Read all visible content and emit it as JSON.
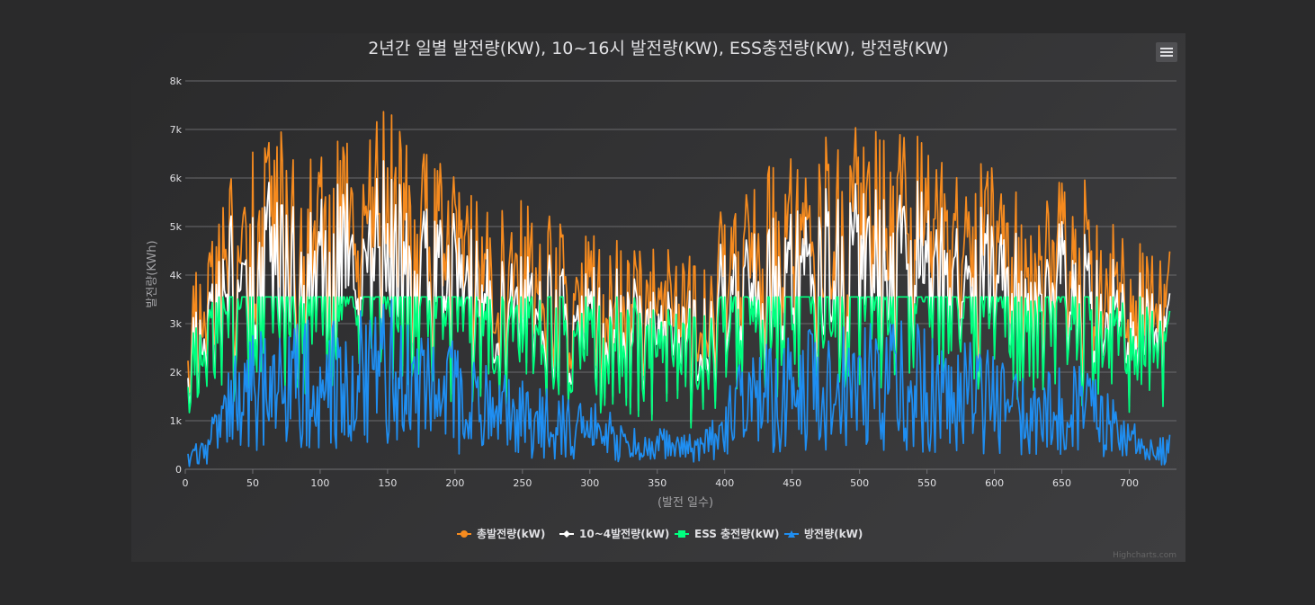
{
  "chart_data": {
    "type": "line",
    "title": "2년간 일별 발전량(KW), 10~16시 발전량(KW), ESS충전량(KW), 방전량(KW)",
    "xlabel": "(발전 일수)",
    "ylabel": "발전량(KWh)",
    "xlim": [
      0,
      735
    ],
    "ylim": [
      0,
      8000
    ],
    "x_ticks": [
      "0",
      "50",
      "100",
      "150",
      "200",
      "250",
      "300",
      "350",
      "400",
      "450",
      "500",
      "550",
      "600",
      "650",
      "700"
    ],
    "y_ticks": [
      "0",
      "1k",
      "2k",
      "3k",
      "4k",
      "5k",
      "6k",
      "7k",
      "8k"
    ],
    "x_tick_values": [
      0,
      50,
      100,
      150,
      200,
      250,
      300,
      350,
      400,
      450,
      500,
      550,
      600,
      650,
      700
    ],
    "y_tick_values": [
      0,
      1000,
      2000,
      3000,
      4000,
      5000,
      6000,
      7000,
      8000
    ],
    "grid": true,
    "legend_position": "bottom-center",
    "ess_cap": 3550,
    "series": [
      {
        "name": "총발전량(kW)",
        "color": "#f68b1f",
        "marker": "circle",
        "x": [
          2,
          10,
          20,
          30,
          40,
          50,
          60,
          70,
          80,
          90,
          100,
          110,
          120,
          130,
          140,
          150,
          160,
          170,
          180,
          190,
          200,
          210,
          220,
          230,
          240,
          250,
          260,
          270,
          280,
          290,
          300,
          310,
          320,
          330,
          340,
          350,
          360,
          370,
          380,
          390,
          400,
          410,
          420,
          430,
          440,
          450,
          460,
          470,
          480,
          490,
          500,
          510,
          520,
          530,
          540,
          550,
          560,
          570,
          580,
          590,
          600,
          610,
          620,
          630,
          640,
          650,
          660,
          670,
          680,
          690,
          700,
          710,
          720,
          730
        ],
        "values": [
          3300,
          3900,
          4300,
          4900,
          5400,
          5700,
          5800,
          5850,
          5500,
          5650,
          5650,
          5700,
          5650,
          5750,
          6050,
          6200,
          6150,
          5800,
          5500,
          5350,
          5300,
          5100,
          4850,
          4700,
          4500,
          4700,
          4600,
          4500,
          4300,
          4100,
          4250,
          4050,
          3950,
          3750,
          3750,
          3850,
          3850,
          3750,
          3650,
          3950,
          4750,
          4900,
          5150,
          5250,
          5450,
          5500,
          5550,
          5600,
          5650,
          5750,
          5850,
          5900,
          5950,
          5850,
          5750,
          5600,
          5500,
          5550,
          5400,
          5350,
          5200,
          4950,
          4700,
          4750,
          4800,
          4900,
          5000,
          4850,
          4550,
          4150,
          4000,
          3800,
          3800,
          3900
        ]
      },
      {
        "name": "10~4발전량(kW)",
        "color": "#ffffff",
        "marker": "diamond",
        "x": [
          2,
          10,
          20,
          30,
          40,
          50,
          60,
          70,
          80,
          90,
          100,
          110,
          120,
          130,
          140,
          150,
          160,
          170,
          180,
          190,
          200,
          210,
          220,
          230,
          240,
          250,
          260,
          270,
          280,
          290,
          300,
          310,
          320,
          330,
          340,
          350,
          360,
          370,
          380,
          390,
          400,
          410,
          420,
          430,
          440,
          450,
          460,
          470,
          480,
          490,
          500,
          510,
          520,
          530,
          540,
          550,
          560,
          570,
          580,
          590,
          600,
          610,
          620,
          630,
          640,
          650,
          660,
          670,
          680,
          690,
          700,
          710,
          720,
          730
        ],
        "values": [
          3000,
          3600,
          3900,
          4300,
          4700,
          4900,
          4950,
          4950,
          4800,
          4800,
          4800,
          4800,
          4750,
          4850,
          4950,
          5000,
          4950,
          4800,
          4700,
          4600,
          4500,
          4400,
          4200,
          4100,
          4000,
          4100,
          4000,
          3950,
          3850,
          3750,
          3800,
          3700,
          3650,
          3600,
          3550,
          3650,
          3650,
          3600,
          3550,
          3700,
          4200,
          4300,
          4400,
          4500,
          4600,
          4650,
          4650,
          4700,
          4700,
          4750,
          4800,
          4800,
          4800,
          4750,
          4700,
          4650,
          4600,
          4600,
          4550,
          4500,
          4400,
          4300,
          4100,
          4150,
          4200,
          4250,
          4300,
          4200,
          4000,
          3800,
          3700,
          3600,
          3600,
          3650
        ]
      },
      {
        "name": "ESS 충전량(kW)",
        "color": "#00ff7f",
        "marker": "square",
        "x": [
          2,
          10,
          20,
          30,
          40,
          50,
          60,
          70,
          80,
          90,
          100,
          110,
          120,
          130,
          140,
          150,
          160,
          170,
          180,
          190,
          200,
          210,
          220,
          230,
          240,
          250,
          260,
          270,
          280,
          290,
          300,
          310,
          320,
          330,
          340,
          350,
          360,
          370,
          380,
          390,
          400,
          410,
          420,
          430,
          440,
          450,
          460,
          470,
          480,
          490,
          500,
          510,
          520,
          530,
          540,
          550,
          560,
          570,
          580,
          590,
          600,
          610,
          620,
          630,
          640,
          650,
          660,
          670,
          680,
          690,
          700,
          710,
          720,
          730
        ],
        "values": [
          2400,
          2800,
          3000,
          3200,
          3300,
          3300,
          3300,
          3300,
          3250,
          3300,
          3300,
          3300,
          3300,
          3300,
          3350,
          3350,
          3300,
          3300,
          3250,
          3250,
          3200,
          3150,
          3100,
          3050,
          2950,
          3000,
          2950,
          2950,
          2900,
          2850,
          2900,
          2850,
          2800,
          2750,
          2750,
          2800,
          2800,
          2750,
          2700,
          2800,
          3150,
          3200,
          3250,
          3300,
          3300,
          3300,
          3300,
          3300,
          3300,
          3300,
          3350,
          3350,
          3350,
          3300,
          3300,
          3300,
          3300,
          3300,
          3250,
          3250,
          3200,
          3150,
          3050,
          3100,
          3100,
          3150,
          3200,
          3100,
          3000,
          2850,
          2800,
          2700,
          2700,
          2750
        ]
      },
      {
        "name": "방전량(kW)",
        "color": "#1f8ef1",
        "marker": "triangle",
        "x": [
          2,
          10,
          20,
          30,
          40,
          50,
          60,
          70,
          80,
          90,
          100,
          110,
          120,
          130,
          140,
          150,
          160,
          170,
          180,
          190,
          200,
          210,
          220,
          230,
          240,
          250,
          260,
          270,
          280,
          290,
          300,
          310,
          320,
          330,
          340,
          350,
          360,
          370,
          380,
          390,
          400,
          410,
          420,
          430,
          440,
          450,
          460,
          470,
          480,
          490,
          500,
          510,
          520,
          530,
          540,
          550,
          560,
          570,
          580,
          590,
          600,
          610,
          620,
          630,
          640,
          650,
          660,
          670,
          680,
          690,
          700,
          710,
          720,
          730
        ],
        "values": [
          200,
          350,
          700,
          1100,
          1500,
          1700,
          1800,
          1850,
          1800,
          1850,
          1850,
          1900,
          1900,
          1950,
          2100,
          2200,
          2150,
          2000,
          1850,
          1700,
          1600,
          1500,
          1350,
          1250,
          1100,
          1150,
          1050,
          1000,
          900,
          800,
          850,
          750,
          650,
          550,
          500,
          550,
          550,
          500,
          450,
          600,
          1100,
          1250,
          1400,
          1500,
          1600,
          1650,
          1700,
          1700,
          1750,
          1800,
          1850,
          1850,
          1900,
          1850,
          1800,
          1700,
          1650,
          1650,
          1600,
          1550,
          1450,
          1300,
          1150,
          1200,
          1250,
          1300,
          1350,
          1250,
          1050,
          800,
          650,
          450,
          400,
          450
        ]
      }
    ]
  },
  "credits": "Highcharts.com"
}
